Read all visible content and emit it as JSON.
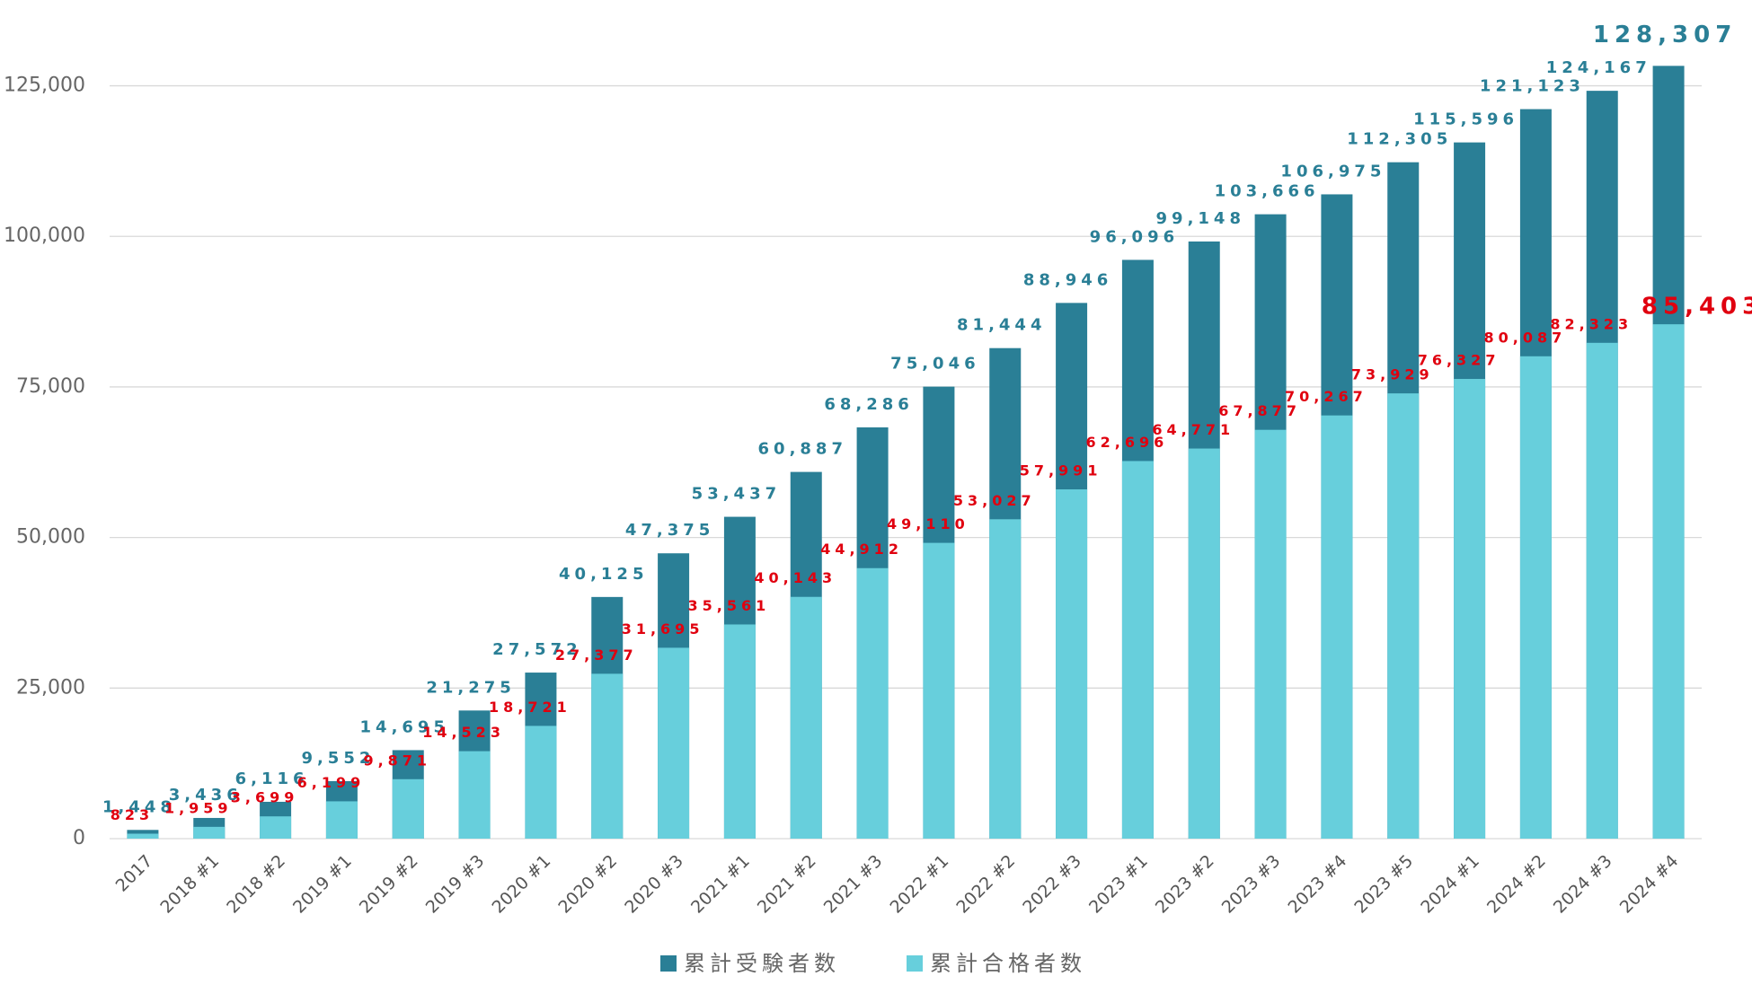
{
  "chart_data": {
    "type": "overlap_bar",
    "categories": [
      "2017",
      "2018 #1",
      "2018 #2",
      "2019 #1",
      "2019 #2",
      "2019 #3",
      "2020 #1",
      "2020 #2",
      "2020 #3",
      "2021 #1",
      "2021 #2",
      "2021 #3",
      "2022 #1",
      "2022 #2",
      "2022 #3",
      "2023 #1",
      "2023 #2",
      "2023 #3",
      "2023 #4",
      "2023 #5",
      "2024 #1",
      "2024 #2",
      "2024 #3",
      "2024 #4"
    ],
    "series": [
      {
        "name": "累計受験者数",
        "color": "#2a7f96",
        "values": [
          1448,
          3436,
          6116,
          9552,
          14695,
          21275,
          27572,
          40125,
          47375,
          53437,
          60887,
          68286,
          75046,
          81444,
          88946,
          96096,
          99148,
          103666,
          106975,
          112305,
          115596,
          121123,
          124167,
          128307
        ],
        "value_labels": [
          "1,448",
          "3,436",
          "6,116",
          "9,552",
          "14,695",
          "21,275",
          "27,572",
          "40,125",
          "47,375",
          "53,437",
          "60,887",
          "68,286",
          "75,046",
          "81,444",
          "88,946",
          "96,096",
          "99,148",
          "103,666",
          "106,975",
          "112,305",
          "115,596",
          "121,123",
          "124,167",
          "128,307"
        ]
      },
      {
        "name": "累計合格者数",
        "color": "#67cfdc",
        "values": [
          823,
          1959,
          3699,
          6199,
          9871,
          14523,
          18721,
          27377,
          31695,
          35561,
          40143,
          44912,
          49110,
          53027,
          57991,
          62696,
          64771,
          67877,
          70267,
          73929,
          76327,
          80087,
          82323,
          85403
        ],
        "value_labels": [
          "823",
          "1,959",
          "3,699",
          "6,199",
          "9,871",
          "14,523",
          "18,721",
          "27,377",
          "31,695",
          "35,561",
          "40,143",
          "44,912",
          "49,110",
          "53,027",
          "57,991",
          "62,696",
          "64,771",
          "67,877",
          "70,267",
          "73,929",
          "76,327",
          "80,087",
          "82,323",
          "85,403"
        ]
      }
    ],
    "ylim": [
      0,
      130000
    ],
    "yticks": [
      0,
      {
        "value": 25000,
        "label": "25,000"
      },
      {
        "value": 50000,
        "label": "50,000"
      },
      {
        "value": 75000,
        "label": "75,000"
      },
      {
        "value": 100000,
        "label": "100,000"
      },
      {
        "value": 125000,
        "label": "125,000"
      }
    ],
    "grid": true,
    "legend": "bottom"
  }
}
